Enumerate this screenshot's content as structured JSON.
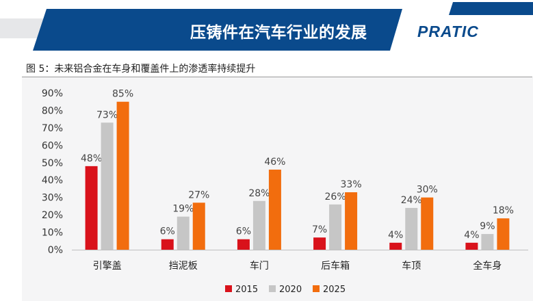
{
  "header": {
    "title": "压铸件在汽车行业的发展",
    "logo_text": "PRATIC",
    "banner_color": "#0a4a8c"
  },
  "figure": {
    "caption": "图 5：未来铝合金在车身和覆盖件上的渗透率持续提升"
  },
  "chart_data": {
    "type": "bar",
    "title": "",
    "xlabel": "",
    "ylabel": "",
    "categories": [
      "引擎盖",
      "挡泥板",
      "车门",
      "后车箱",
      "车顶",
      "全车身"
    ],
    "series": [
      {
        "name": "2015",
        "color": "#d9121b",
        "values": [
          48,
          6,
          6,
          7,
          4,
          4
        ]
      },
      {
        "name": "2020",
        "color": "#c6c6c6",
        "values": [
          73,
          19,
          28,
          26,
          24,
          9
        ]
      },
      {
        "name": "2025",
        "color": "#f26d0e",
        "values": [
          85,
          27,
          46,
          33,
          30,
          18
        ]
      }
    ],
    "value_suffix": "%",
    "ylim": [
      0,
      90
    ],
    "yticks": [
      0,
      10,
      20,
      30,
      40,
      50,
      60,
      70,
      80,
      90
    ],
    "ytick_labels": [
      "0%",
      "10%",
      "20%",
      "30%",
      "40%",
      "50%",
      "60%",
      "70%",
      "80%",
      "90%"
    ],
    "grid": false,
    "legend_position": "bottom"
  }
}
